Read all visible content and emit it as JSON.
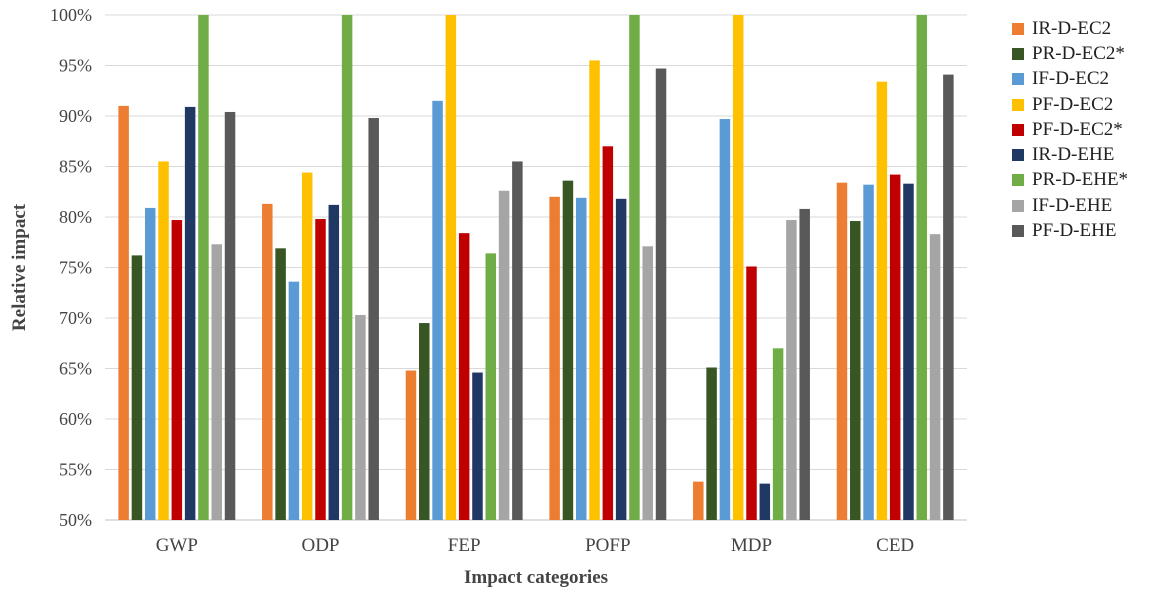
{
  "chart_data": {
    "type": "bar",
    "xlabel": "Impact categories",
    "ylabel": "Relative impact",
    "ylim": [
      50,
      100
    ],
    "yticks": [
      "50%",
      "55%",
      "60%",
      "65%",
      "70%",
      "75%",
      "80%",
      "85%",
      "90%",
      "95%",
      "100%"
    ],
    "grid": true,
    "legend_position": "right",
    "categories": [
      "GWP",
      "ODP",
      "FEP",
      "POFP",
      "MDP",
      "CED"
    ],
    "series": [
      {
        "name": "IR-D-EC2",
        "color": "#ED7D31",
        "values": [
          91.0,
          81.3,
          64.8,
          82.0,
          53.8,
          83.4
        ]
      },
      {
        "name": "PR-D-EC2*",
        "color": "#375623",
        "values": [
          76.2,
          76.9,
          69.5,
          83.6,
          65.1,
          79.6
        ]
      },
      {
        "name": "IF-D-EC2",
        "color": "#5B9BD5",
        "values": [
          80.9,
          73.6,
          91.5,
          81.9,
          89.7,
          83.2
        ]
      },
      {
        "name": "PF-D-EC2",
        "color": "#FFC000",
        "values": [
          85.5,
          84.4,
          100,
          95.5,
          100,
          93.4
        ]
      },
      {
        "name": "PF-D-EC2*",
        "color": "#C00000",
        "values": [
          79.7,
          79.8,
          78.4,
          87.0,
          75.1,
          84.2
        ]
      },
      {
        "name": "IR-D-EHE",
        "color": "#1F3864",
        "values": [
          90.9,
          81.2,
          64.6,
          81.8,
          53.6,
          83.3
        ]
      },
      {
        "name": "PR-D-EHE*",
        "color": "#70AD47",
        "values": [
          100,
          100,
          76.4,
          100,
          67.0,
          100
        ]
      },
      {
        "name": "IF-D-EHE",
        "color": "#A5A5A5",
        "values": [
          77.3,
          70.3,
          82.6,
          77.1,
          79.7,
          78.3
        ]
      },
      {
        "name": "PF-D-EHE",
        "color": "#595959",
        "values": [
          90.4,
          89.8,
          85.5,
          94.7,
          80.8,
          94.1
        ]
      }
    ]
  }
}
